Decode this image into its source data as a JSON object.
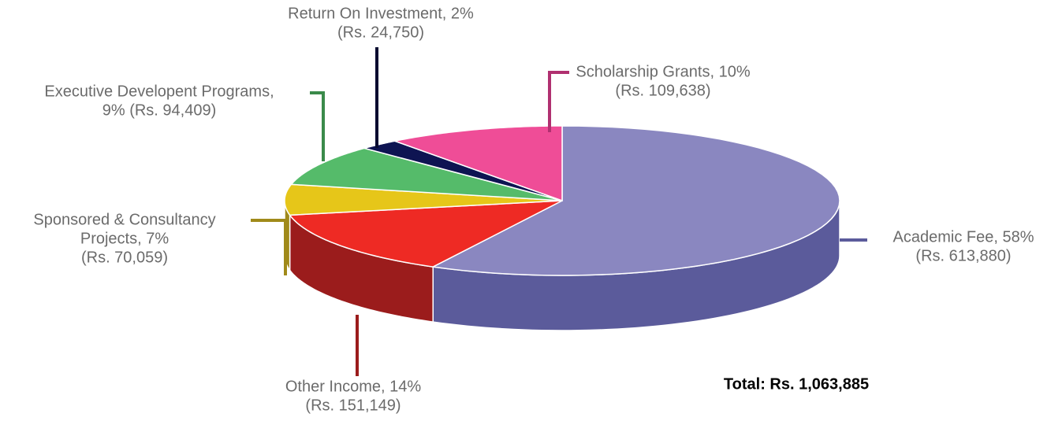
{
  "chart_data": {
    "type": "pie",
    "labels": [
      [
        "Academic Fee, 58%",
        "(Rs. 613,880)"
      ],
      [
        "Other Income, 14%",
        "(Rs. 151,149)"
      ],
      [
        "Sponsored & Consultancy",
        "Projects, 7%",
        "(Rs. 70,059)"
      ],
      [
        "Executive Developent Programs,",
        "9% (Rs. 94,409)"
      ],
      [
        "Return On Investment, 2%",
        "(Rs. 24,750)"
      ],
      [
        "Scholarship Grants, 10%",
        "(Rs. 109,638)"
      ]
    ],
    "percents": [
      58,
      14,
      7,
      9,
      2,
      10
    ],
    "values": [
      613880,
      151149,
      70059,
      94409,
      24750,
      109638
    ],
    "colors": [
      "#8a87c0",
      "#ee2a24",
      "#e6c619",
      "#55bb6a",
      "#0e1452",
      "#ef4d97"
    ],
    "side_colors": [
      "#5b5b9b",
      "#9b1c1c",
      "#a08a1a",
      "#3a8a4a",
      "#070a30",
      "#b03070"
    ],
    "total": "Total: Rs. 1,063,885"
  }
}
